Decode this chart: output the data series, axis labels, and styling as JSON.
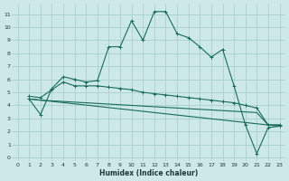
{
  "xlabel": "Humidex (Indice chaleur)",
  "x_ticks": [
    0,
    1,
    2,
    3,
    4,
    5,
    6,
    7,
    8,
    9,
    10,
    11,
    12,
    13,
    14,
    15,
    16,
    17,
    18,
    19,
    20,
    21,
    22,
    23
  ],
  "y_ticks": [
    0,
    1,
    2,
    3,
    4,
    5,
    6,
    7,
    8,
    9,
    10,
    11
  ],
  "xlim": [
    -0.5,
    23.5
  ],
  "ylim": [
    -0.3,
    11.8
  ],
  "bg_color": "#cce9e7",
  "grid_color": "#aacfcd",
  "line_color": "#1a6b5a",
  "line1_x": [
    1,
    2,
    3,
    4,
    5,
    6,
    7,
    8,
    9,
    10,
    11,
    12,
    13,
    14,
    15,
    16,
    17,
    18,
    19,
    20,
    21,
    22,
    23
  ],
  "line1_y": [
    4.5,
    3.3,
    5.3,
    6.2,
    6.0,
    5.8,
    5.9,
    8.5,
    8.5,
    10.5,
    9.0,
    11.2,
    11.2,
    9.5,
    9.2,
    8.5,
    7.7,
    8.3,
    5.5,
    2.5,
    0.3,
    2.3,
    2.4
  ],
  "line2_x": [
    1,
    2,
    3,
    4,
    5,
    6,
    7,
    8,
    9,
    10,
    11,
    12,
    13,
    14,
    15,
    16,
    17,
    18,
    19,
    20,
    21,
    22,
    23
  ],
  "line2_y": [
    4.7,
    4.6,
    5.2,
    5.8,
    5.5,
    5.5,
    5.5,
    5.4,
    5.3,
    5.2,
    5.0,
    4.9,
    4.8,
    4.7,
    4.6,
    4.5,
    4.4,
    4.3,
    4.2,
    4.0,
    3.8,
    2.5,
    2.5
  ],
  "line3_x": [
    1,
    2,
    3,
    4,
    5,
    6,
    7,
    8,
    9,
    10,
    11,
    12,
    13,
    14,
    15,
    16,
    17,
    18,
    19,
    20,
    21,
    22,
    23
  ],
  "line3_y": [
    4.5,
    4.4,
    4.35,
    4.3,
    4.25,
    4.2,
    4.15,
    4.1,
    4.05,
    4.0,
    3.95,
    3.9,
    3.85,
    3.8,
    3.75,
    3.7,
    3.65,
    3.6,
    3.55,
    3.5,
    3.45,
    2.5,
    2.5
  ],
  "line4_x": [
    1,
    23
  ],
  "line4_y": [
    4.5,
    2.4
  ]
}
